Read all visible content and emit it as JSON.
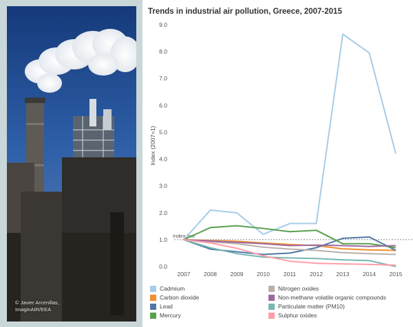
{
  "photo": {
    "credit_line1": "© Javier Arcenillas,",
    "credit_line2": "ImaginAIR/EEA"
  },
  "chart_data": {
    "type": "line",
    "title": "Trends in industrial air pollution, Greece, 2007-2015",
    "xlabel": "",
    "ylabel": "Index (2007=1)",
    "x": [
      "2007",
      "2008",
      "2009",
      "2010",
      "2011",
      "2012",
      "2013",
      "2014",
      "2015"
    ],
    "ylim": [
      0,
      9
    ],
    "yticks": [
      "0.0",
      "1.0",
      "2.0",
      "3.0",
      "4.0",
      "5.0",
      "6.0",
      "7.0",
      "8.0",
      "9.0"
    ],
    "reference_line": {
      "label": "Index line",
      "value": 1.0
    },
    "legend_position": "bottom",
    "series": [
      {
        "name": "Cadmium",
        "color": "#a6cce6",
        "values": [
          1.0,
          2.1,
          2.0,
          1.2,
          1.6,
          1.6,
          8.65,
          7.95,
          4.2
        ]
      },
      {
        "name": "Carbon dioxide",
        "color": "#f28e2b",
        "values": [
          1.0,
          0.97,
          0.94,
          0.88,
          0.82,
          0.78,
          0.66,
          0.62,
          0.6
        ]
      },
      {
        "name": "Lead",
        "color": "#4e79a7",
        "values": [
          1.0,
          0.65,
          0.55,
          0.45,
          0.5,
          0.7,
          1.05,
          1.1,
          0.6
        ]
      },
      {
        "name": "Mercury",
        "color": "#59a14f",
        "values": [
          1.0,
          1.45,
          1.52,
          1.42,
          1.3,
          1.35,
          0.85,
          0.85,
          0.7
        ]
      },
      {
        "name": "Nitrogen oxides",
        "color": "#bab0ac",
        "values": [
          1.0,
          0.92,
          0.85,
          0.72,
          0.65,
          0.6,
          0.52,
          0.48,
          0.45
        ]
      },
      {
        "name": "Non-methane volatile organic compounds",
        "color": "#9e6a9e",
        "values": [
          1.0,
          0.95,
          0.9,
          0.85,
          0.78,
          0.8,
          0.78,
          0.75,
          0.78
        ]
      },
      {
        "name": "Particulate matter (PM10)",
        "color": "#76b7b2",
        "values": [
          1.0,
          0.7,
          0.48,
          0.35,
          0.32,
          0.3,
          0.25,
          0.22,
          0.0
        ]
      },
      {
        "name": "Sulphur oxides",
        "color": "#ff9da7",
        "values": [
          1.0,
          0.88,
          0.68,
          0.4,
          0.2,
          0.12,
          0.1,
          0.08,
          0.05
        ]
      }
    ]
  }
}
